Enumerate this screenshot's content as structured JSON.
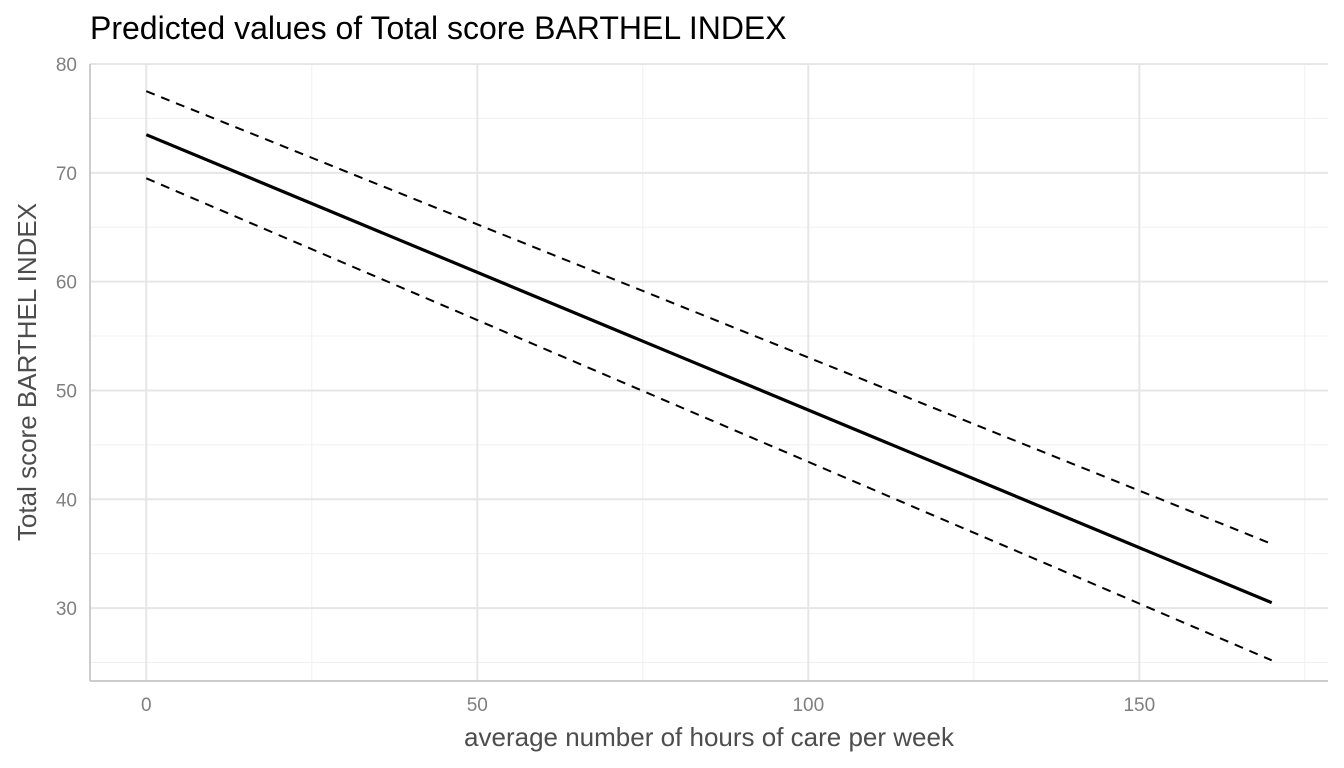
{
  "chart_data": {
    "type": "line",
    "title": "Predicted values of Total score BARTHEL INDEX",
    "xlabel": "average number of hours of care per week",
    "ylabel": "Total score BARTHEL INDEX",
    "xlim": [
      -8.5,
      178.5
    ],
    "ylim": [
      23.3,
      80
    ],
    "x_ticks": [
      0,
      50,
      100,
      150
    ],
    "x_tick_labels": [
      "0",
      "50",
      "100",
      "150"
    ],
    "y_ticks": [
      30,
      40,
      50,
      60,
      70,
      80
    ],
    "y_tick_labels": [
      "30",
      "40",
      "50",
      "60",
      "70",
      "80"
    ],
    "x_minor_ticks": [
      25,
      75,
      125,
      175
    ],
    "y_minor_ticks": [
      25,
      35,
      45,
      55,
      65,
      75
    ],
    "grid": true,
    "legend": "none",
    "series": [
      {
        "role": "predicted",
        "style": "solid",
        "color": "#000000",
        "x": [
          0,
          170
        ],
        "y": [
          73.5,
          30.5
        ]
      },
      {
        "role": "upper-ci",
        "style": "dashed",
        "color": "#000000",
        "x": [
          0,
          170
        ],
        "y": [
          77.5,
          35.9
        ]
      },
      {
        "role": "lower-ci",
        "style": "dashed",
        "color": "#000000",
        "x": [
          0,
          170
        ],
        "y": [
          69.5,
          25.2
        ]
      }
    ]
  }
}
